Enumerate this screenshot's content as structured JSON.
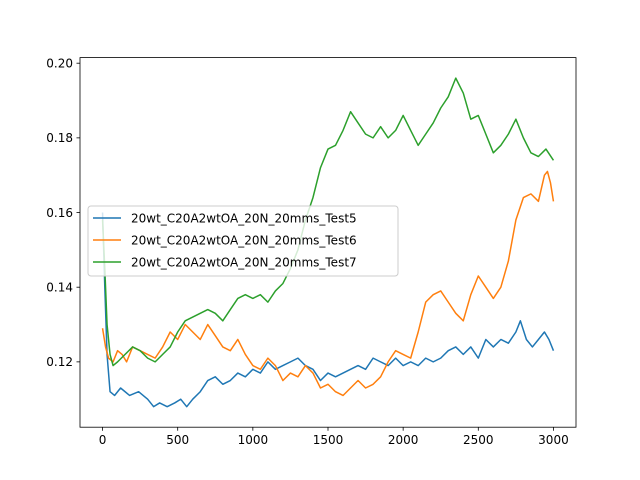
{
  "chart_data": {
    "type": "line",
    "title": "",
    "xlabel": "",
    "ylabel": "",
    "xlim": [
      -150,
      3150
    ],
    "ylim": [
      0.1025,
      0.2015
    ],
    "x_ticks": [
      0,
      500,
      1000,
      1500,
      2000,
      2500,
      3000
    ],
    "x_tick_labels": [
      "0",
      "500",
      "1000",
      "1500",
      "2000",
      "2500",
      "3000"
    ],
    "y_ticks": [
      0.12,
      0.14,
      0.16,
      0.18,
      0.2
    ],
    "y_tick_labels": [
      "0.12",
      "0.14",
      "0.16",
      "0.18",
      "0.20"
    ],
    "grid": false,
    "legend_position": "center-left",
    "series": [
      {
        "name": "20wt_C20A2wtOA_20N_20mms_Test5",
        "color": "#1f77b4",
        "points": [
          [
            0,
            0.16
          ],
          [
            15,
            0.14
          ],
          [
            30,
            0.122
          ],
          [
            50,
            0.112
          ],
          [
            80,
            0.111
          ],
          [
            120,
            0.113
          ],
          [
            180,
            0.111
          ],
          [
            240,
            0.112
          ],
          [
            300,
            0.11
          ],
          [
            340,
            0.108
          ],
          [
            380,
            0.109
          ],
          [
            430,
            0.108
          ],
          [
            480,
            0.109
          ],
          [
            520,
            0.11
          ],
          [
            560,
            0.108
          ],
          [
            600,
            0.11
          ],
          [
            650,
            0.112
          ],
          [
            700,
            0.115
          ],
          [
            750,
            0.116
          ],
          [
            800,
            0.114
          ],
          [
            850,
            0.115
          ],
          [
            900,
            0.117
          ],
          [
            950,
            0.116
          ],
          [
            1000,
            0.118
          ],
          [
            1050,
            0.117
          ],
          [
            1100,
            0.12
          ],
          [
            1150,
            0.118
          ],
          [
            1200,
            0.119
          ],
          [
            1250,
            0.12
          ],
          [
            1300,
            0.121
          ],
          [
            1350,
            0.119
          ],
          [
            1400,
            0.118
          ],
          [
            1450,
            0.115
          ],
          [
            1500,
            0.117
          ],
          [
            1550,
            0.116
          ],
          [
            1600,
            0.117
          ],
          [
            1650,
            0.118
          ],
          [
            1700,
            0.119
          ],
          [
            1750,
            0.118
          ],
          [
            1800,
            0.121
          ],
          [
            1850,
            0.12
          ],
          [
            1900,
            0.119
          ],
          [
            1950,
            0.121
          ],
          [
            2000,
            0.119
          ],
          [
            2050,
            0.12
          ],
          [
            2100,
            0.119
          ],
          [
            2150,
            0.121
          ],
          [
            2200,
            0.12
          ],
          [
            2250,
            0.121
          ],
          [
            2300,
            0.123
          ],
          [
            2350,
            0.124
          ],
          [
            2400,
            0.122
          ],
          [
            2450,
            0.124
          ],
          [
            2500,
            0.121
          ],
          [
            2550,
            0.126
          ],
          [
            2600,
            0.124
          ],
          [
            2650,
            0.126
          ],
          [
            2700,
            0.125
          ],
          [
            2750,
            0.128
          ],
          [
            2780,
            0.131
          ],
          [
            2820,
            0.126
          ],
          [
            2860,
            0.124
          ],
          [
            2900,
            0.126
          ],
          [
            2940,
            0.128
          ],
          [
            2970,
            0.126
          ],
          [
            3000,
            0.123
          ]
        ]
      },
      {
        "name": "20wt_C20A2wtOA_20N_20mms_Test6",
        "color": "#ff7f0e",
        "points": [
          [
            0,
            0.129
          ],
          [
            20,
            0.124
          ],
          [
            40,
            0.121
          ],
          [
            70,
            0.12
          ],
          [
            100,
            0.123
          ],
          [
            130,
            0.122
          ],
          [
            160,
            0.12
          ],
          [
            200,
            0.124
          ],
          [
            250,
            0.123
          ],
          [
            300,
            0.122
          ],
          [
            350,
            0.121
          ],
          [
            400,
            0.124
          ],
          [
            450,
            0.128
          ],
          [
            500,
            0.126
          ],
          [
            550,
            0.13
          ],
          [
            600,
            0.128
          ],
          [
            650,
            0.126
          ],
          [
            700,
            0.13
          ],
          [
            750,
            0.127
          ],
          [
            800,
            0.124
          ],
          [
            850,
            0.123
          ],
          [
            900,
            0.126
          ],
          [
            950,
            0.122
          ],
          [
            1000,
            0.119
          ],
          [
            1050,
            0.118
          ],
          [
            1100,
            0.121
          ],
          [
            1150,
            0.119
          ],
          [
            1200,
            0.115
          ],
          [
            1250,
            0.117
          ],
          [
            1300,
            0.116
          ],
          [
            1350,
            0.119
          ],
          [
            1400,
            0.117
          ],
          [
            1450,
            0.113
          ],
          [
            1500,
            0.114
          ],
          [
            1550,
            0.112
          ],
          [
            1600,
            0.111
          ],
          [
            1650,
            0.113
          ],
          [
            1700,
            0.115
          ],
          [
            1750,
            0.113
          ],
          [
            1800,
            0.114
          ],
          [
            1850,
            0.116
          ],
          [
            1900,
            0.12
          ],
          [
            1950,
            0.123
          ],
          [
            2000,
            0.122
          ],
          [
            2050,
            0.121
          ],
          [
            2100,
            0.128
          ],
          [
            2150,
            0.136
          ],
          [
            2200,
            0.138
          ],
          [
            2250,
            0.139
          ],
          [
            2300,
            0.136
          ],
          [
            2350,
            0.133
          ],
          [
            2400,
            0.131
          ],
          [
            2450,
            0.138
          ],
          [
            2500,
            0.143
          ],
          [
            2550,
            0.14
          ],
          [
            2600,
            0.137
          ],
          [
            2650,
            0.14
          ],
          [
            2700,
            0.147
          ],
          [
            2750,
            0.158
          ],
          [
            2800,
            0.164
          ],
          [
            2850,
            0.165
          ],
          [
            2900,
            0.163
          ],
          [
            2940,
            0.17
          ],
          [
            2960,
            0.171
          ],
          [
            2980,
            0.168
          ],
          [
            3000,
            0.163
          ]
        ]
      },
      {
        "name": "20wt_C20A2wtOA_20N_20mms_Test7",
        "color": "#2ca02c",
        "points": [
          [
            0,
            0.158
          ],
          [
            15,
            0.145
          ],
          [
            30,
            0.13
          ],
          [
            50,
            0.122
          ],
          [
            70,
            0.119
          ],
          [
            100,
            0.12
          ],
          [
            150,
            0.122
          ],
          [
            200,
            0.124
          ],
          [
            250,
            0.123
          ],
          [
            300,
            0.121
          ],
          [
            350,
            0.12
          ],
          [
            400,
            0.122
          ],
          [
            450,
            0.124
          ],
          [
            500,
            0.128
          ],
          [
            550,
            0.131
          ],
          [
            600,
            0.132
          ],
          [
            650,
            0.133
          ],
          [
            700,
            0.134
          ],
          [
            750,
            0.133
          ],
          [
            800,
            0.131
          ],
          [
            850,
            0.134
          ],
          [
            900,
            0.137
          ],
          [
            950,
            0.138
          ],
          [
            1000,
            0.137
          ],
          [
            1050,
            0.138
          ],
          [
            1100,
            0.136
          ],
          [
            1150,
            0.139
          ],
          [
            1200,
            0.141
          ],
          [
            1250,
            0.145
          ],
          [
            1300,
            0.15
          ],
          [
            1350,
            0.158
          ],
          [
            1400,
            0.164
          ],
          [
            1450,
            0.172
          ],
          [
            1500,
            0.177
          ],
          [
            1550,
            0.178
          ],
          [
            1600,
            0.182
          ],
          [
            1650,
            0.187
          ],
          [
            1700,
            0.184
          ],
          [
            1750,
            0.181
          ],
          [
            1800,
            0.18
          ],
          [
            1850,
            0.183
          ],
          [
            1900,
            0.18
          ],
          [
            1950,
            0.182
          ],
          [
            2000,
            0.186
          ],
          [
            2050,
            0.182
          ],
          [
            2100,
            0.178
          ],
          [
            2150,
            0.181
          ],
          [
            2200,
            0.184
          ],
          [
            2250,
            0.188
          ],
          [
            2300,
            0.191
          ],
          [
            2350,
            0.196
          ],
          [
            2400,
            0.192
          ],
          [
            2450,
            0.185
          ],
          [
            2500,
            0.186
          ],
          [
            2550,
            0.181
          ],
          [
            2600,
            0.176
          ],
          [
            2650,
            0.178
          ],
          [
            2700,
            0.181
          ],
          [
            2750,
            0.185
          ],
          [
            2800,
            0.18
          ],
          [
            2850,
            0.176
          ],
          [
            2900,
            0.175
          ],
          [
            2950,
            0.177
          ],
          [
            3000,
            0.174
          ]
        ]
      }
    ]
  }
}
